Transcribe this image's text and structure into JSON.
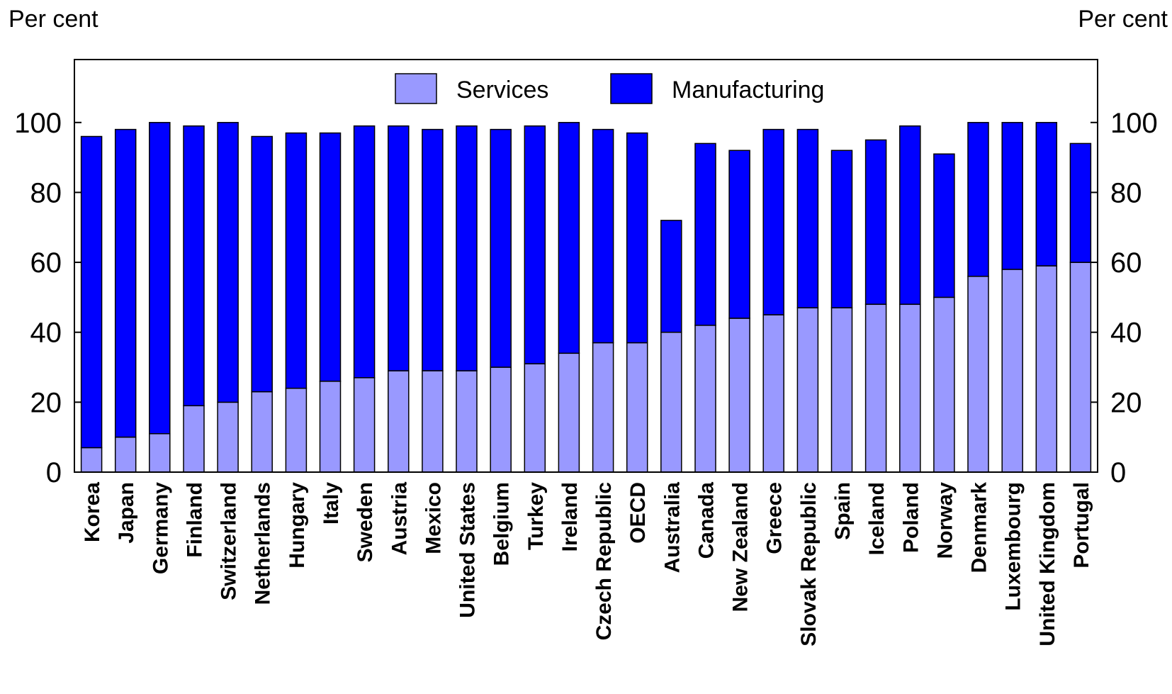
{
  "chart_data": {
    "type": "bar",
    "stacked": true,
    "y_unit_left": "Per cent",
    "y_unit_right": "Per cent",
    "ylim": [
      0,
      118
    ],
    "yticks": [
      "0",
      "20",
      "40",
      "60",
      "80",
      "100"
    ],
    "ytick_values": [
      0,
      20,
      40,
      60,
      80,
      100
    ],
    "grid": false,
    "legend_position": "top-center",
    "categories": [
      "Korea",
      "Japan",
      "Germany",
      "Finland",
      "Switzerland",
      "Netherlands",
      "Hungary",
      "Italy",
      "Sweden",
      "Austria",
      "Mexico",
      "United States",
      "Belgium",
      "Turkey",
      "Ireland",
      "Czech Republic",
      "OECD",
      "Australia",
      "Canada",
      "New Zealand",
      "Greece",
      "Slovak Republic",
      "Spain",
      "Iceland",
      "Poland",
      "Norway",
      "Denmark",
      "Luxembourg",
      "United Kingdom",
      "Portugal"
    ],
    "series": [
      {
        "name": "Services",
        "color": "#9999ff",
        "values": [
          7,
          10,
          11,
          19,
          20,
          23,
          24,
          26,
          27,
          29,
          29,
          29,
          30,
          31,
          34,
          37,
          37,
          40,
          42,
          44,
          45,
          47,
          47,
          48,
          48,
          50,
          56,
          58,
          59,
          60
        ]
      },
      {
        "name": "Manufacturing",
        "color": "#0000ff",
        "values": [
          89,
          88,
          89,
          80,
          80,
          73,
          73,
          71,
          72,
          70,
          69,
          70,
          68,
          68,
          66,
          61,
          60,
          32,
          52,
          48,
          53,
          51,
          45,
          47,
          51,
          41,
          44,
          42,
          41,
          34
        ]
      }
    ]
  }
}
